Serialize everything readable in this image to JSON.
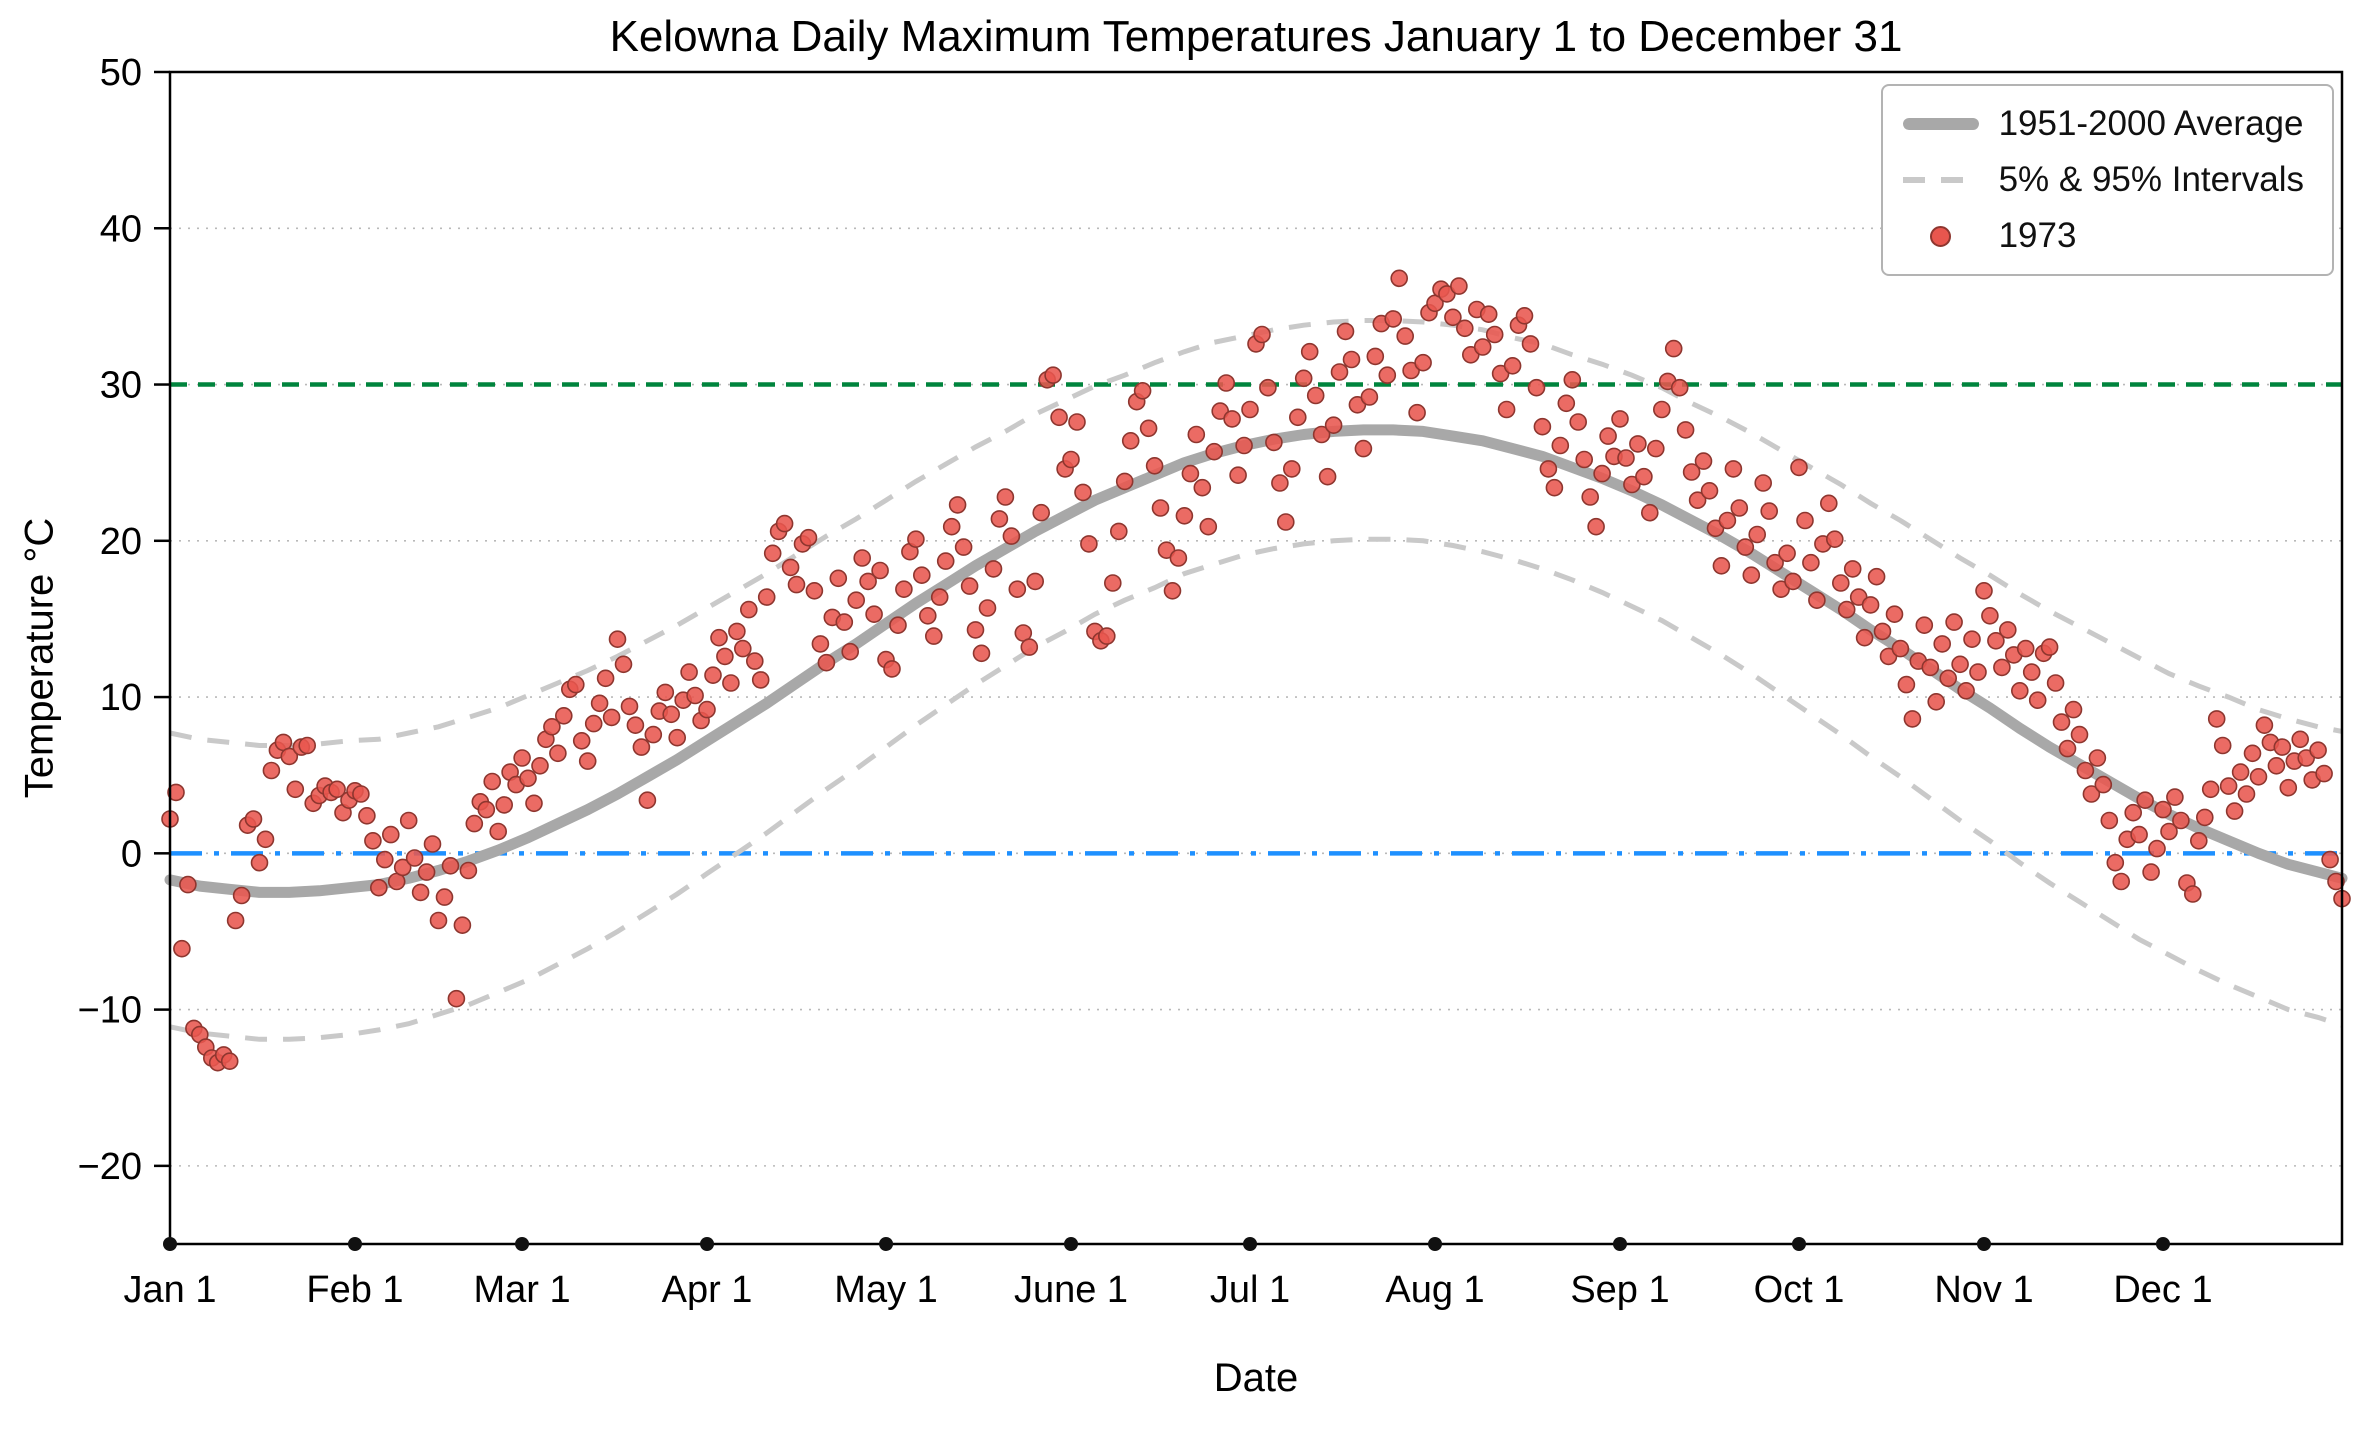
{
  "chart_data": {
    "type": "scatter",
    "title": "Kelowna Daily Maximum Temperatures January 1 to December 31",
    "xlabel": "Date",
    "ylabel": "Temperature °C",
    "ylim": [
      -25,
      50
    ],
    "xlim_days": [
      0,
      364
    ],
    "grid_y_values": [
      -20,
      -10,
      0,
      10,
      20,
      30,
      40
    ],
    "y_ticks": [
      {
        "value": -20,
        "label": "−20"
      },
      {
        "value": -10,
        "label": "−10"
      },
      {
        "value": 0,
        "label": "0"
      },
      {
        "value": 10,
        "label": "10"
      },
      {
        "value": 20,
        "label": "20"
      },
      {
        "value": 30,
        "label": "30"
      },
      {
        "value": 40,
        "label": "40"
      },
      {
        "value": 50,
        "label": "50"
      }
    ],
    "x_ticks": [
      {
        "day": 0,
        "label": "Jan 1"
      },
      {
        "day": 31,
        "label": "Feb 1"
      },
      {
        "day": 59,
        "label": "Mar 1"
      },
      {
        "day": 90,
        "label": "Apr 1"
      },
      {
        "day": 120,
        "label": "May 1"
      },
      {
        "day": 151,
        "label": "June 1"
      },
      {
        "day": 181,
        "label": "Jul 1"
      },
      {
        "day": 212,
        "label": "Aug 1"
      },
      {
        "day": 243,
        "label": "Sep 1"
      },
      {
        "day": 273,
        "label": "Oct 1"
      },
      {
        "day": 304,
        "label": "Nov 1"
      },
      {
        "day": 334,
        "label": "Dec 1"
      }
    ],
    "reference_lines": [
      {
        "value": 30,
        "style": "dashed",
        "color": "#00843d",
        "name": "30C-threshold-line"
      },
      {
        "value": 0,
        "style": "dashdot",
        "color": "#1e90ff",
        "name": "0C-freezing-line"
      }
    ],
    "legend": [
      {
        "label": "1951-2000 Average",
        "type": "thick-line"
      },
      {
        "label": "5% & 95% Intervals",
        "type": "dashed-line"
      },
      {
        "label": "1973",
        "type": "point"
      }
    ],
    "colors": {
      "average": "#a8a8a8",
      "interval": "#c9c9c9",
      "point_fill": "#e8564e",
      "point_edge": "#8e362f",
      "grid": "#b9b9b9",
      "axis": "#000000"
    },
    "climatology": {
      "days": [
        0,
        5,
        10,
        15,
        20,
        25,
        30,
        35,
        40,
        45,
        50,
        55,
        60,
        65,
        70,
        75,
        80,
        85,
        90,
        95,
        100,
        105,
        110,
        115,
        120,
        125,
        130,
        135,
        140,
        145,
        150,
        155,
        160,
        165,
        170,
        175,
        180,
        185,
        190,
        195,
        200,
        205,
        210,
        215,
        220,
        225,
        230,
        235,
        240,
        245,
        250,
        255,
        260,
        265,
        270,
        275,
        280,
        285,
        290,
        295,
        300,
        305,
        310,
        315,
        320,
        325,
        330,
        335,
        340,
        345,
        350,
        355,
        360,
        364
      ],
      "average": [
        -1.7,
        -2.1,
        -2.3,
        -2.5,
        -2.5,
        -2.4,
        -2.2,
        -2.0,
        -1.6,
        -1.1,
        -0.5,
        0.2,
        1.0,
        1.9,
        2.8,
        3.8,
        4.9,
        6.0,
        7.2,
        8.4,
        9.6,
        10.9,
        12.2,
        13.4,
        14.7,
        16.0,
        17.2,
        18.4,
        19.5,
        20.6,
        21.6,
        22.6,
        23.4,
        24.2,
        25.0,
        25.6,
        26.1,
        26.5,
        26.8,
        27.0,
        27.1,
        27.1,
        27.0,
        26.7,
        26.4,
        25.9,
        25.4,
        24.7,
        24.0,
        23.2,
        22.3,
        21.3,
        20.3,
        19.2,
        18.0,
        16.8,
        15.6,
        14.3,
        13.1,
        11.8,
        10.5,
        9.3,
        8.0,
        6.8,
        5.7,
        4.6,
        3.5,
        2.5,
        1.6,
        0.8,
        0.0,
        -0.7,
        -1.2,
        -1.6
      ],
      "upper_95": [
        7.7,
        7.3,
        7.1,
        6.9,
        6.9,
        7.0,
        7.2,
        7.3,
        7.7,
        8.1,
        8.7,
        9.3,
        10.1,
        10.9,
        11.7,
        12.6,
        13.6,
        14.6,
        15.7,
        16.8,
        17.9,
        19.1,
        20.3,
        21.4,
        22.6,
        23.8,
        24.9,
        26.0,
        27.0,
        28.1,
        29.0,
        29.9,
        30.6,
        31.4,
        32.1,
        32.7,
        33.1,
        33.5,
        33.8,
        34.0,
        34.1,
        34.1,
        34.0,
        33.8,
        33.5,
        33.0,
        32.6,
        31.9,
        31.3,
        30.6,
        29.8,
        28.8,
        27.9,
        26.9,
        25.8,
        24.7,
        23.6,
        22.4,
        21.3,
        20.1,
        18.9,
        17.8,
        16.6,
        15.5,
        14.5,
        13.5,
        12.5,
        11.5,
        10.7,
        10.0,
        9.2,
        8.6,
        8.1,
        7.8
      ],
      "lower_5": [
        -11.1,
        -11.5,
        -11.7,
        -11.9,
        -11.9,
        -11.8,
        -11.6,
        -11.3,
        -10.9,
        -10.3,
        -9.7,
        -8.9,
        -8.1,
        -7.1,
        -6.1,
        -5.0,
        -3.8,
        -2.6,
        -1.3,
        0.0,
        1.3,
        2.7,
        4.1,
        5.4,
        6.8,
        8.2,
        9.5,
        10.8,
        12.0,
        13.2,
        14.2,
        15.3,
        16.2,
        17.0,
        17.9,
        18.5,
        19.1,
        19.5,
        19.8,
        20.0,
        20.1,
        20.1,
        20.0,
        19.7,
        19.3,
        18.8,
        18.2,
        17.5,
        16.7,
        15.8,
        14.9,
        13.8,
        12.7,
        11.5,
        10.2,
        8.9,
        7.6,
        6.2,
        4.9,
        3.5,
        2.1,
        0.8,
        -0.6,
        -1.9,
        -3.1,
        -4.3,
        -5.5,
        -6.5,
        -7.5,
        -8.4,
        -9.2,
        -10.0,
        -10.5,
        -11.0
      ]
    },
    "series_1973": {
      "label": "1973",
      "month_order": [
        "Jan",
        "Feb",
        "Mar",
        "Apr",
        "May",
        "Jun",
        "Jul",
        "Aug",
        "Sep",
        "Oct",
        "Nov",
        "Dec"
      ],
      "values_by_month": {
        "Jan": [
          2.2,
          3.9,
          -6.1,
          -2.0,
          -11.2,
          -11.6,
          -12.4,
          -13.1,
          -13.4,
          -12.9,
          -13.3,
          -4.3,
          -2.7,
          1.8,
          2.2,
          -0.6,
          0.9,
          5.3,
          6.6,
          7.1,
          6.2,
          4.1,
          6.8,
          6.9,
          3.2,
          3.7,
          4.3,
          3.9,
          4.1,
          2.6,
          3.4
        ],
        "Feb": [
          4.0,
          3.8,
          2.4,
          0.8,
          -2.2,
          -0.4,
          1.2,
          -1.8,
          -0.9,
          2.1,
          -0.3,
          -2.5,
          -1.2,
          0.6,
          -4.3,
          -2.8,
          -0.8,
          -9.3,
          -4.6,
          -1.1,
          1.9,
          3.3,
          2.8,
          4.6,
          1.4,
          3.1,
          5.2,
          4.4
        ],
        "Mar": [
          6.1,
          4.8,
          3.2,
          5.6,
          7.3,
          8.1,
          6.4,
          8.8,
          10.5,
          10.8,
          7.2,
          5.9,
          8.3,
          9.6,
          11.2,
          8.7,
          13.7,
          12.1,
          9.4,
          8.2,
          6.8,
          3.4,
          7.6,
          9.1,
          10.3,
          8.9,
          7.4,
          9.8,
          11.6,
          10.1,
          8.5
        ],
        "Apr": [
          9.2,
          11.4,
          13.8,
          12.6,
          10.9,
          14.2,
          13.1,
          15.6,
          12.3,
          11.1,
          16.4,
          19.2,
          20.6,
          21.1,
          18.3,
          17.2,
          19.8,
          20.2,
          16.8,
          13.4,
          12.2,
          15.1,
          17.6,
          14.8,
          12.9,
          16.2,
          18.9,
          17.4,
          15.3,
          18.1
        ],
        "May": [
          12.4,
          11.8,
          14.6,
          16.9,
          19.3,
          20.1,
          17.8,
          15.2,
          13.9,
          16.4,
          18.7,
          20.9,
          22.3,
          19.6,
          17.1,
          14.3,
          12.8,
          15.7,
          18.2,
          21.4,
          22.8,
          20.3,
          16.9,
          14.1,
          13.2,
          17.4,
          21.8,
          30.3,
          30.6,
          27.9,
          24.6
        ],
        "Jun": [
          25.2,
          27.6,
          23.1,
          19.8,
          14.2,
          13.6,
          13.9,
          17.3,
          20.6,
          23.8,
          26.4,
          28.9,
          29.6,
          27.2,
          24.8,
          22.1,
          19.4,
          16.8,
          18.9,
          21.6,
          24.3,
          26.8,
          23.4,
          20.9,
          25.7,
          28.3,
          30.1,
          27.8,
          24.2,
          26.1
        ],
        "Jul": [
          28.4,
          32.6,
          33.2,
          29.8,
          26.3,
          23.7,
          21.2,
          24.6,
          27.9,
          30.4,
          32.1,
          29.3,
          26.8,
          24.1,
          27.4,
          30.8,
          33.4,
          31.6,
          28.7,
          25.9,
          29.2,
          31.8,
          33.9,
          30.6,
          34.2,
          36.8,
          33.1,
          30.9,
          28.2,
          31.4,
          34.6
        ],
        "Aug": [
          35.2,
          36.1,
          35.8,
          34.3,
          36.3,
          33.6,
          31.9,
          34.8,
          32.4,
          34.5,
          33.2,
          30.7,
          28.4,
          31.2,
          33.8,
          34.4,
          32.6,
          29.8,
          27.3,
          24.6,
          23.4,
          26.1,
          28.8,
          30.3,
          27.6,
          25.2,
          22.8,
          20.9,
          24.3,
          26.7,
          25.4
        ],
        "Sep": [
          27.8,
          25.3,
          23.6,
          26.2,
          24.1,
          21.8,
          25.9,
          28.4,
          30.2,
          32.3,
          29.8,
          27.1,
          24.4,
          22.6,
          25.1,
          23.2,
          20.8,
          18.4,
          21.3,
          24.6,
          22.1,
          19.6,
          17.8,
          20.4,
          23.7,
          21.9,
          18.6,
          16.9,
          19.2,
          17.4
        ],
        "Oct": [
          24.7,
          21.3,
          18.6,
          16.2,
          19.8,
          22.4,
          20.1,
          17.3,
          15.6,
          18.2,
          16.4,
          13.8,
          15.9,
          17.7,
          14.2,
          12.6,
          15.3,
          13.1,
          10.8,
          8.6,
          12.3,
          14.6,
          11.9,
          9.7,
          13.4,
          11.2,
          14.8,
          12.1,
          10.4,
          13.7,
          11.6
        ],
        "Nov": [
          16.8,
          15.2,
          13.6,
          11.9,
          14.3,
          12.7,
          10.4,
          13.1,
          11.6,
          9.8,
          12.8,
          13.2,
          10.9,
          8.4,
          6.7,
          9.2,
          7.6,
          5.3,
          3.8,
          6.1,
          4.4,
          2.1,
          -0.6,
          -1.8,
          0.9,
          2.6,
          1.2,
          3.4,
          -1.2,
          0.3
        ],
        "Dec": [
          2.8,
          1.4,
          3.6,
          2.1,
          -1.9,
          -2.6,
          0.8,
          2.3,
          4.1,
          8.6,
          6.9,
          4.3,
          2.7,
          5.2,
          3.8,
          6.4,
          4.9,
          8.2,
          7.1,
          5.6,
          6.8,
          4.2,
          5.9,
          7.3,
          6.1,
          4.7,
          6.6,
          5.1,
          -0.4,
          -1.8,
          -2.9
        ]
      }
    }
  }
}
